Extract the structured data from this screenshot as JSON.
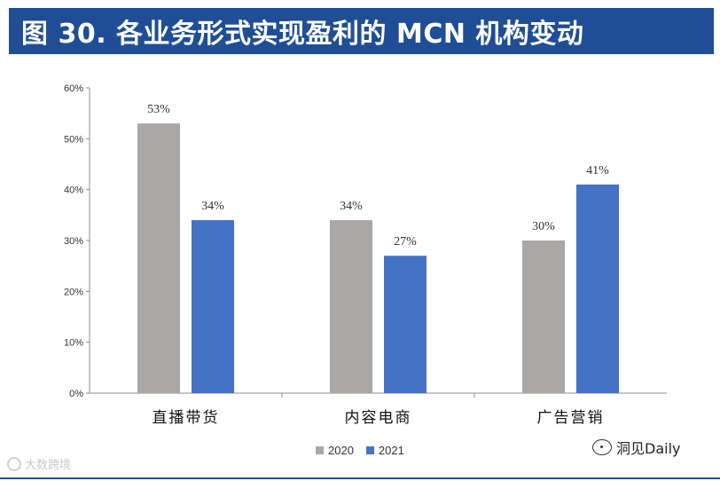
{
  "header": {
    "title": "图 30. 各业务形式实现盈利的 MCN 机构变动"
  },
  "colors": {
    "title_bar": "#1f4e96",
    "series_2020": "#aaa7a6",
    "series_2021": "#4472c4"
  },
  "chart_data": {
    "type": "bar",
    "categories": [
      "直播带货",
      "内容电商",
      "广告营销"
    ],
    "series": [
      {
        "name": "2020",
        "values": [
          53,
          34,
          30
        ],
        "labels": [
          "53%",
          "34%",
          "30%"
        ]
      },
      {
        "name": "2021",
        "values": [
          34,
          27,
          41
        ],
        "labels": [
          "34%",
          "27%",
          "41%"
        ]
      }
    ],
    "ylim": [
      0,
      60
    ],
    "yticks": [
      "0%",
      "10%",
      "20%",
      "30%",
      "40%",
      "50%",
      "60%"
    ],
    "grid": false,
    "legend_position": "bottom"
  },
  "legend": {
    "items": [
      {
        "label": "2020"
      },
      {
        "label": "2021"
      }
    ]
  },
  "watermarks": {
    "left": "大数跨境",
    "right": "洞见Daily"
  }
}
